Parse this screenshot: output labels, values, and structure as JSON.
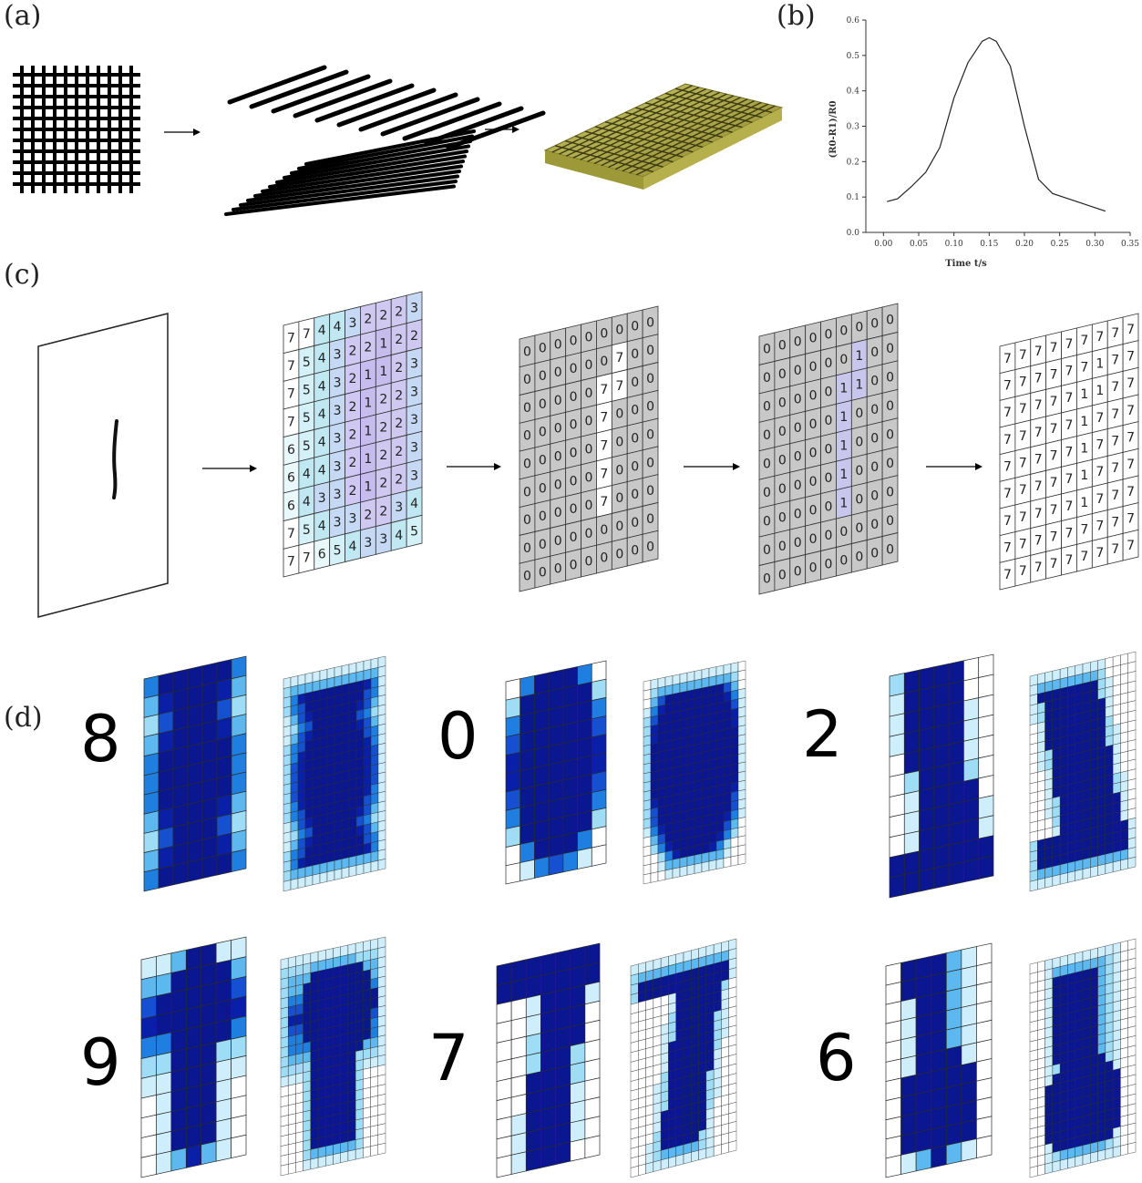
{
  "labels": {
    "a": "(a)",
    "b": "(b)",
    "c": "(c)",
    "d": "(d)"
  },
  "chart_data": {
    "type": "line",
    "title": "",
    "xlabel": "Time t/s",
    "ylabel": "(R0-R1)/R0",
    "xlim": [
      -0.025,
      0.35
    ],
    "ylim": [
      0.0,
      0.6
    ],
    "xticks": [
      "0.00",
      "0.05",
      "0.10",
      "0.15",
      "0.20",
      "0.25",
      "0.30",
      "0.35"
    ],
    "yticks": [
      "0.0",
      "0.1",
      "0.2",
      "0.3",
      "0.4",
      "0.5",
      "0.6"
    ],
    "series": [
      {
        "x": [
          0.005,
          0.02,
          0.04,
          0.06,
          0.08,
          0.1,
          0.12,
          0.14,
          0.15,
          0.16,
          0.18,
          0.2,
          0.22,
          0.24,
          0.27,
          0.3,
          0.315
        ],
        "y": [
          0.087,
          0.095,
          0.13,
          0.17,
          0.24,
          0.38,
          0.48,
          0.54,
          0.55,
          0.54,
          0.47,
          0.3,
          0.15,
          0.11,
          0.09,
          0.07,
          0.06
        ]
      }
    ]
  },
  "grid_c1": [
    [
      7,
      7,
      4,
      4,
      3,
      2,
      2,
      2,
      3
    ],
    [
      7,
      5,
      4,
      3,
      2,
      2,
      1,
      2,
      2
    ],
    [
      7,
      5,
      4,
      3,
      2,
      1,
      1,
      2,
      3
    ],
    [
      7,
      5,
      4,
      3,
      2,
      1,
      2,
      2,
      3
    ],
    [
      6,
      5,
      4,
      3,
      2,
      1,
      2,
      2,
      3
    ],
    [
      6,
      4,
      4,
      3,
      2,
      1,
      2,
      2,
      3
    ],
    [
      6,
      4,
      3,
      3,
      2,
      1,
      2,
      2,
      3
    ],
    [
      7,
      5,
      4,
      3,
      3,
      2,
      2,
      3,
      4
    ],
    [
      7,
      7,
      6,
      5,
      4,
      3,
      3,
      4,
      5
    ]
  ],
  "grid_c2": [
    [
      0,
      0,
      0,
      0,
      0,
      0,
      0,
      0,
      0
    ],
    [
      0,
      0,
      0,
      0,
      0,
      0,
      7,
      0,
      0
    ],
    [
      0,
      0,
      0,
      0,
      0,
      7,
      7,
      0,
      0
    ],
    [
      0,
      0,
      0,
      0,
      0,
      7,
      0,
      0,
      0
    ],
    [
      0,
      0,
      0,
      0,
      0,
      7,
      0,
      0,
      0
    ],
    [
      0,
      0,
      0,
      0,
      0,
      7,
      0,
      0,
      0
    ],
    [
      0,
      0,
      0,
      0,
      0,
      7,
      0,
      0,
      0
    ],
    [
      0,
      0,
      0,
      0,
      0,
      0,
      0,
      0,
      0
    ],
    [
      0,
      0,
      0,
      0,
      0,
      0,
      0,
      0,
      0
    ]
  ],
  "grid_c3": [
    [
      0,
      0,
      0,
      0,
      0,
      0,
      0,
      0,
      0
    ],
    [
      0,
      0,
      0,
      0,
      0,
      0,
      1,
      0,
      0
    ],
    [
      0,
      0,
      0,
      0,
      0,
      1,
      1,
      0,
      0
    ],
    [
      0,
      0,
      0,
      0,
      0,
      1,
      0,
      0,
      0
    ],
    [
      0,
      0,
      0,
      0,
      0,
      1,
      0,
      0,
      0
    ],
    [
      0,
      0,
      0,
      0,
      0,
      1,
      0,
      0,
      0
    ],
    [
      0,
      0,
      0,
      0,
      0,
      1,
      0,
      0,
      0
    ],
    [
      0,
      0,
      0,
      0,
      0,
      0,
      0,
      0,
      0
    ],
    [
      0,
      0,
      0,
      0,
      0,
      0,
      0,
      0,
      0
    ]
  ],
  "grid_c4": [
    [
      7,
      7,
      7,
      7,
      7,
      7,
      7,
      7,
      7
    ],
    [
      7,
      7,
      7,
      7,
      7,
      7,
      1,
      7,
      7
    ],
    [
      7,
      7,
      7,
      7,
      7,
      1,
      1,
      7,
      7
    ],
    [
      7,
      7,
      7,
      7,
      7,
      1,
      7,
      7,
      7
    ],
    [
      7,
      7,
      7,
      7,
      7,
      1,
      7,
      7,
      7
    ],
    [
      7,
      7,
      7,
      7,
      7,
      1,
      7,
      7,
      7
    ],
    [
      7,
      7,
      7,
      7,
      7,
      1,
      7,
      7,
      7
    ],
    [
      7,
      7,
      7,
      7,
      7,
      7,
      7,
      7,
      7
    ],
    [
      7,
      7,
      7,
      7,
      7,
      7,
      7,
      7,
      7
    ]
  ],
  "digits": [
    "8",
    "0",
    "2",
    "9",
    "7",
    "6"
  ],
  "digit_1": "1"
}
